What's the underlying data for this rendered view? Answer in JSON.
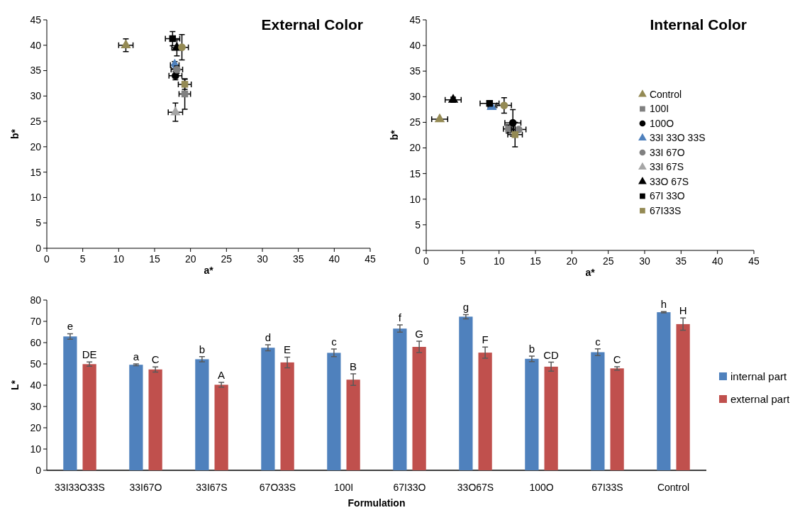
{
  "chart_data": [
    {
      "type": "scatter",
      "title": "External Color",
      "xlabel": "a*",
      "ylabel": "b*",
      "xlim": [
        0,
        45
      ],
      "ylim": [
        0,
        45
      ],
      "xticks": [
        0,
        5,
        10,
        15,
        20,
        25,
        30,
        35,
        40,
        45
      ],
      "yticks": [
        0,
        5,
        10,
        15,
        20,
        25,
        30,
        35,
        40,
        45
      ],
      "series": [
        {
          "color": "#948a54",
          "marker": "triangle",
          "x": [
            11.0
          ],
          "values": [
            40.0
          ],
          "errors": [
            1.25
          ],
          "xerrors": [
            1.0
          ]
        },
        {
          "color": "#808080",
          "marker": "square",
          "x": [
            19.2
          ],
          "values": [
            30.4
          ],
          "errors": [
            3.0
          ],
          "xerrors": [
            0.8
          ]
        },
        {
          "color": "#000000",
          "marker": "circle",
          "x": [
            17.9
          ],
          "values": [
            34.0
          ],
          "errors": [
            0.8
          ],
          "xerrors": [
            0.9
          ]
        },
        {
          "color": "#4f81bd",
          "marker": "diamond",
          "x": [
            17.8
          ],
          "values": [
            36.1
          ],
          "errors": [
            0.7
          ],
          "xerrors": [
            0.6
          ]
        },
        {
          "color": "#808080",
          "marker": "circle",
          "x": [
            18.1
          ],
          "values": [
            35.2
          ],
          "errors": [
            0.7
          ],
          "xerrors": [
            0.8
          ]
        },
        {
          "color": "#a6a6a6",
          "marker": "triangle",
          "x": [
            17.9
          ],
          "values": [
            26.8
          ],
          "errors": [
            1.8
          ],
          "xerrors": [
            1.0
          ]
        },
        {
          "color": "#000000",
          "marker": "triangle",
          "x": [
            18.1
          ],
          "values": [
            39.5
          ],
          "errors": [
            1.6
          ],
          "xerrors": [
            0.7
          ]
        },
        {
          "color": "#000000",
          "marker": "square",
          "x": [
            17.5
          ],
          "values": [
            41.3
          ],
          "errors": [
            1.4
          ],
          "xerrors": [
            1.0
          ]
        },
        {
          "color": "#948a54",
          "marker": "square",
          "x": [
            19.2
          ],
          "values": [
            32.3
          ],
          "errors": [
            1.0
          ],
          "xerrors": [
            0.9
          ]
        },
        {
          "color": "#948a54",
          "marker": "circle",
          "x": [
            18.8
          ],
          "values": [
            39.6
          ],
          "errors": [
            2.5
          ],
          "xerrors": [
            0.9
          ]
        }
      ]
    },
    {
      "type": "scatter",
      "title": "Internal Color",
      "xlabel": "a*",
      "ylabel": "b*",
      "xlim": [
        0,
        45
      ],
      "ylim": [
        0,
        45
      ],
      "xticks": [
        0,
        5,
        10,
        15,
        20,
        25,
        30,
        35,
        40,
        45
      ],
      "yticks": [
        0,
        5,
        10,
        15,
        20,
        25,
        30,
        35,
        40,
        45
      ],
      "legend": "right",
      "series": [
        {
          "name": "Control",
          "color": "#948a54",
          "marker": "triangle",
          "x": [
            1.85
          ],
          "values": [
            25.6
          ],
          "xerrors": [
            1.1
          ]
        },
        {
          "name": "100I",
          "color": "#808080",
          "marker": "square",
          "x": [
            11.3
          ],
          "values": [
            23.7
          ],
          "errors": [
            0.8
          ],
          "xerrors": [
            0.7
          ]
        },
        {
          "name": "100O",
          "color": "#000000",
          "marker": "circle",
          "x": [
            11.9
          ],
          "values": [
            24.9
          ],
          "errors": [
            2.6
          ],
          "xerrors": [
            1.1
          ]
        },
        {
          "name": "33I 33O 33S",
          "color": "#4f81bd",
          "marker": "triangle",
          "x": [
            9.0
          ],
          "values": [
            28.0
          ],
          "xerrors": [
            0.5
          ]
        },
        {
          "name": "33I 67O",
          "color": "#808080",
          "marker": "circle",
          "x": [
            12.7
          ],
          "values": [
            23.6
          ],
          "xerrors": [
            1.0
          ]
        },
        {
          "name": "33I 67S",
          "color": "#a6a6a6",
          "marker": "triangle",
          "x": [
            null
          ],
          "values": [
            null
          ]
        },
        {
          "name": "33O 67S",
          "color": "#000000",
          "marker": "triangle",
          "x": [
            3.7
          ],
          "values": [
            29.4
          ],
          "errors": [
            0.5
          ],
          "xerrors": [
            1.1
          ]
        },
        {
          "name": "67I 33O",
          "color": "#000000",
          "marker": "square",
          "x": [
            8.7
          ],
          "values": [
            28.7
          ],
          "xerrors": [
            1.3
          ]
        },
        {
          "name": "67I33S",
          "color": "#948a54",
          "marker": "square",
          "x": [
            12.2
          ],
          "values": [
            22.6
          ],
          "errors": [
            2.4
          ],
          "xerrors": [
            1.0
          ]
        },
        {
          "color": "#948a54",
          "marker": "circle",
          "x": [
            10.7
          ],
          "values": [
            28.3
          ],
          "errors": [
            1.5
          ],
          "xerrors": [
            1.0
          ]
        }
      ]
    },
    {
      "type": "bar",
      "xlabel": "Formulation",
      "ylabel": "L*",
      "ylim": [
        0,
        80
      ],
      "yticks": [
        0,
        10,
        20,
        30,
        40,
        50,
        60,
        70,
        80
      ],
      "legend": "right",
      "categories": [
        "33I33O33S",
        "33I67O",
        "33I67S",
        "67O33S",
        "100I",
        "67I33O",
        "33O67S",
        "100O",
        "67I33S",
        "Control"
      ],
      "series": [
        {
          "name": "internal part",
          "color": "#4f81bd",
          "values": [
            62.9,
            49.6,
            52.2,
            57.6,
            55.2,
            66.6,
            72.2,
            52.4,
            55.5,
            74.3
          ],
          "errors": [
            1.3,
            0.4,
            1.2,
            1.4,
            1.8,
            1.7,
            1.0,
            1.3,
            1.6,
            0.3
          ],
          "value_labels": [
            "e",
            "a",
            "b",
            "d",
            "c",
            "f",
            "g",
            "b",
            "c",
            "h"
          ]
        },
        {
          "name": "external part",
          "color": "#c0504d",
          "values": [
            49.9,
            47.4,
            40.2,
            50.7,
            42.6,
            58.0,
            55.3,
            48.7,
            47.9,
            68.7
          ],
          "errors": [
            1.0,
            1.2,
            1.1,
            2.5,
            2.7,
            2.7,
            2.6,
            2.1,
            0.8,
            2.9
          ],
          "value_labels": [
            "DE",
            "C",
            "A",
            "E",
            "B",
            "G",
            "F",
            "CD",
            "C",
            "H"
          ]
        }
      ]
    }
  ]
}
